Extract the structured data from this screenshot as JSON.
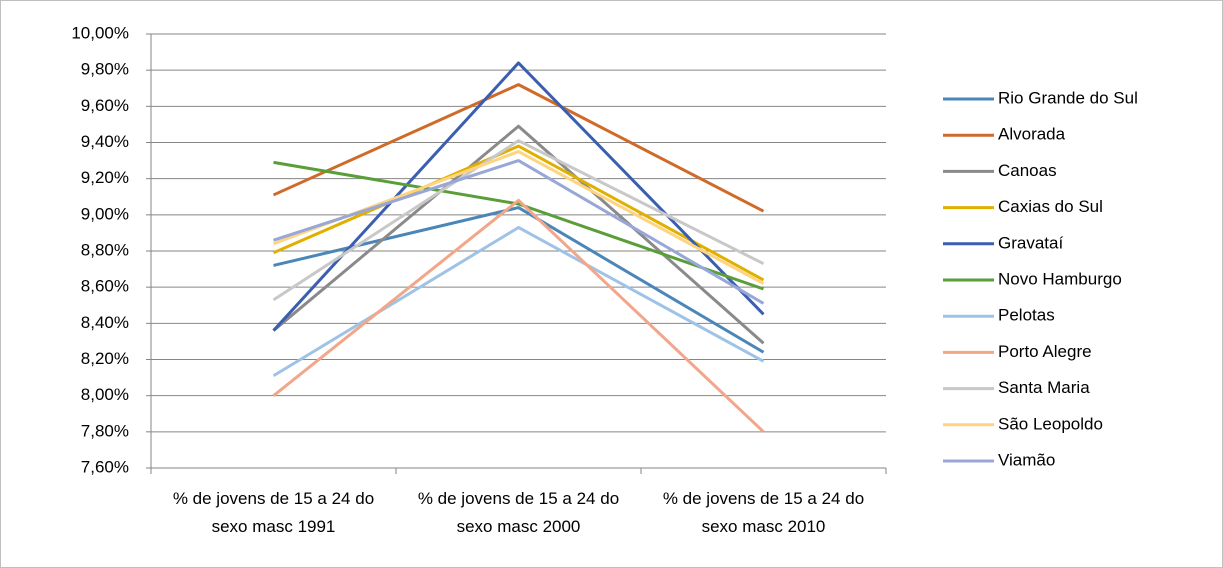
{
  "chart_data": {
    "type": "line",
    "categories": [
      "% de jovens de 15 a 24 do sexo masc 1991",
      "% de jovens de 15 a 24 do sexo masc 2000",
      "% de jovens de 15 a 24 do sexo masc 2010"
    ],
    "ylim": [
      7.6,
      10.0
    ],
    "yticks": [
      {
        "value": 7.6,
        "label": "7,60%"
      },
      {
        "value": 7.8,
        "label": "7,80%"
      },
      {
        "value": 8.0,
        "label": "8,00%"
      },
      {
        "value": 8.2,
        "label": "8,20%"
      },
      {
        "value": 8.4,
        "label": "8,40%"
      },
      {
        "value": 8.6,
        "label": "8,60%"
      },
      {
        "value": 8.8,
        "label": "8,80%"
      },
      {
        "value": 9.0,
        "label": "9,00%"
      },
      {
        "value": 9.2,
        "label": "9,20%"
      },
      {
        "value": 9.4,
        "label": "9,40%"
      },
      {
        "value": 9.6,
        "label": "9,60%"
      },
      {
        "value": 9.8,
        "label": "9,80%"
      },
      {
        "value": 10.0,
        "label": "10,00%"
      }
    ],
    "grid": true,
    "legend": "right",
    "series": [
      {
        "name": "Rio Grande do Sul",
        "color": "#4a86b8",
        "values": [
          8.72,
          9.04,
          8.24
        ]
      },
      {
        "name": "Alvorada",
        "color": "#d06a28",
        "values": [
          9.11,
          9.72,
          9.02
        ]
      },
      {
        "name": "Canoas",
        "color": "#8a8a8a",
        "values": [
          8.36,
          9.49,
          8.29
        ]
      },
      {
        "name": "Caxias do Sul",
        "color": "#e0b000",
        "values": [
          8.79,
          9.38,
          8.64
        ]
      },
      {
        "name": "Gravataí",
        "color": "#3a5fb0",
        "values": [
          8.36,
          9.84,
          8.45
        ]
      },
      {
        "name": "Novo Hamburgo",
        "color": "#5a9e3a",
        "values": [
          9.29,
          9.06,
          8.59
        ]
      },
      {
        "name": "Pelotas",
        "color": "#9ec3e6",
        "values": [
          8.11,
          8.93,
          8.19
        ]
      },
      {
        "name": "Porto Alegre",
        "color": "#f2a68a",
        "values": [
          8.0,
          9.08,
          7.8
        ]
      },
      {
        "name": "Santa Maria",
        "color": "#c8c8c8",
        "values": [
          8.53,
          9.41,
          8.73
        ]
      },
      {
        "name": "São Leopoldo",
        "color": "#ffd480",
        "values": [
          8.84,
          9.35,
          8.62
        ]
      },
      {
        "name": "Viamão",
        "color": "#98a7d8",
        "values": [
          8.86,
          9.3,
          8.51
        ]
      }
    ]
  }
}
